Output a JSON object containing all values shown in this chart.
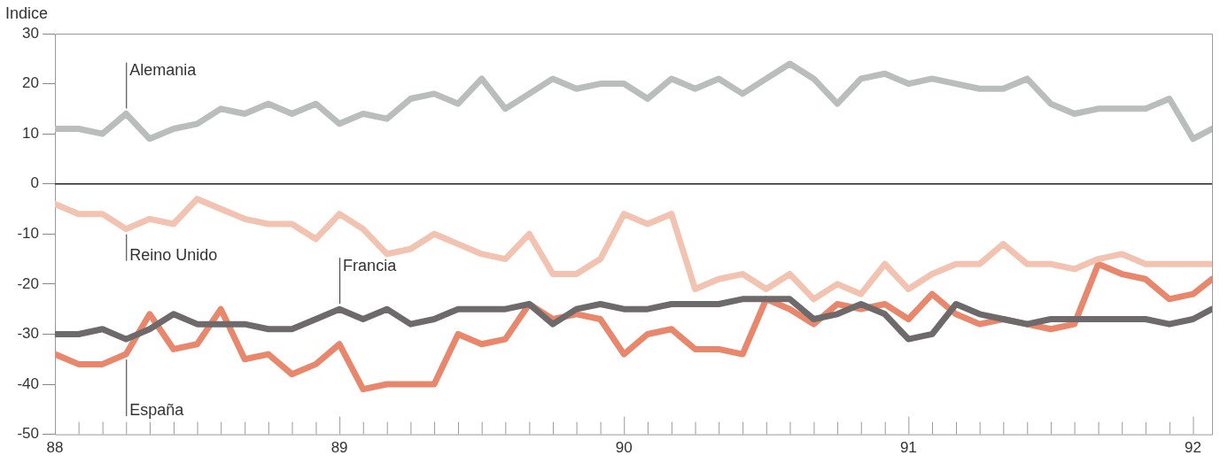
{
  "chart_data": {
    "type": "line",
    "ylabel": "Indice",
    "x": [
      88,
      88.083,
      88.167,
      88.25,
      88.333,
      88.417,
      88.5,
      88.583,
      88.667,
      88.75,
      88.833,
      88.917,
      89,
      89.083,
      89.167,
      89.25,
      89.333,
      89.417,
      89.5,
      89.583,
      89.667,
      89.75,
      89.833,
      89.917,
      90,
      90.083,
      90.167,
      90.25,
      90.333,
      90.417,
      90.5,
      90.583,
      90.667,
      90.75,
      90.833,
      90.917,
      91,
      91.083,
      91.167,
      91.25,
      91.333,
      91.417,
      91.5,
      91.583,
      91.667,
      91.75,
      91.833,
      91.917,
      92,
      92.067
    ],
    "series": [
      {
        "name": "Alemania",
        "color": "#b9bebc",
        "values": [
          11,
          11,
          10,
          14,
          9,
          11,
          12,
          15,
          14,
          16,
          14,
          16,
          12,
          14,
          13,
          17,
          18,
          16,
          21,
          15,
          18,
          21,
          19,
          20,
          20,
          17,
          21,
          19,
          21,
          18,
          21,
          24,
          21,
          16,
          21,
          22,
          20,
          21,
          20,
          19,
          19,
          21,
          16,
          14,
          15,
          15,
          15,
          17,
          9,
          11
        ]
      },
      {
        "name": "Reino Unido",
        "color": "#f2c3b1",
        "values": [
          -4,
          -6,
          -6,
          -9,
          -7,
          -8,
          -3,
          -5,
          -7,
          -8,
          -8,
          -11,
          -6,
          -9,
          -14,
          -13,
          -10,
          -12,
          -14,
          -15,
          -10,
          -18,
          -18,
          -15,
          -6,
          -8,
          -6,
          -21,
          -19,
          -18,
          -21,
          -18,
          -23,
          -20,
          -22,
          -16,
          -21,
          -18,
          -16,
          -16,
          -12,
          -16,
          -16,
          -17,
          -15,
          -14,
          -16,
          -16,
          -16,
          -16
        ]
      },
      {
        "name": "Francia",
        "color": "#6e6a6b",
        "values": [
          -30,
          -30,
          -29,
          -31,
          -29,
          -26,
          -28,
          -28,
          -28,
          -29,
          -29,
          -27,
          -25,
          -27,
          -25,
          -28,
          -27,
          -25,
          -25,
          -25,
          -24,
          -28,
          -25,
          -24,
          -25,
          -25,
          -24,
          -24,
          -24,
          -23,
          -23,
          -23,
          -27,
          -26,
          -24,
          -26,
          -31,
          -30,
          -24,
          -26,
          -27,
          -28,
          -27,
          -27,
          -27,
          -27,
          -27,
          -28,
          -27,
          -25
        ]
      },
      {
        "name": "España",
        "color": "#e8876c",
        "values": [
          -34,
          -36,
          -36,
          -34,
          -26,
          -33,
          -32,
          -25,
          -35,
          -34,
          -38,
          -36,
          -32,
          -41,
          -40,
          -40,
          -40,
          -30,
          -32,
          -31,
          -24,
          -27,
          -26,
          -27,
          -34,
          -30,
          -29,
          -33,
          -33,
          -34,
          -23,
          -25,
          -28,
          -24,
          -25,
          -24,
          -27,
          -22,
          -26,
          -28,
          -27,
          -28,
          -29,
          -28,
          -16,
          -18,
          -19,
          -23,
          -22,
          -19
        ]
      }
    ],
    "xlim": [
      88,
      92.067
    ],
    "xticks": [
      88,
      {
        "value": 88.083,
        "label": null
      },
      {
        "value": 88.167,
        "label": null
      },
      {
        "value": 88.25,
        "label": null
      },
      {
        "value": 88.333,
        "label": null
      },
      {
        "value": 88.417,
        "label": null
      },
      {
        "value": 88.5,
        "label": null
      },
      {
        "value": 88.583,
        "label": null
      },
      {
        "value": 88.667,
        "label": null
      },
      {
        "value": 88.75,
        "label": null
      },
      {
        "value": 88.833,
        "label": null
      },
      {
        "value": 88.917,
        "label": null
      },
      89,
      {
        "value": 89.083,
        "label": null
      },
      {
        "value": 89.167,
        "label": null
      },
      {
        "value": 89.25,
        "label": null
      },
      {
        "value": 89.333,
        "label": null
      },
      {
        "value": 89.417,
        "label": null
      },
      {
        "value": 89.5,
        "label": null
      },
      {
        "value": 89.583,
        "label": null
      },
      {
        "value": 89.667,
        "label": null
      },
      {
        "value": 89.75,
        "label": null
      },
      {
        "value": 89.833,
        "label": null
      },
      {
        "value": 89.917,
        "label": null
      },
      90,
      {
        "value": 90.083,
        "label": null
      },
      {
        "value": 90.167,
        "label": null
      },
      {
        "value": 90.25,
        "label": null
      },
      {
        "value": 90.333,
        "label": null
      },
      {
        "value": 90.417,
        "label": null
      },
      {
        "value": 90.5,
        "label": null
      },
      {
        "value": 90.583,
        "label": null
      },
      {
        "value": 90.667,
        "label": null
      },
      {
        "value": 90.75,
        "label": null
      },
      {
        "value": 90.833,
        "label": null
      },
      {
        "value": 90.917,
        "label": null
      },
      91,
      {
        "value": 91.083,
        "label": null
      },
      {
        "value": 91.167,
        "label": null
      },
      {
        "value": 91.25,
        "label": null
      },
      {
        "value": 91.333,
        "label": null
      },
      {
        "value": 91.417,
        "label": null
      },
      {
        "value": 91.5,
        "label": null
      },
      {
        "value": 91.583,
        "label": null
      },
      {
        "value": 91.667,
        "label": null
      },
      {
        "value": 91.75,
        "label": null
      },
      {
        "value": 91.833,
        "label": null
      },
      {
        "value": 91.917,
        "label": null
      },
      92
    ],
    "ylim": [
      -50,
      30
    ],
    "yticks": [
      -50,
      -40,
      -30,
      -20,
      -10,
      0,
      10,
      20,
      30
    ],
    "ref_lines": [
      {
        "axis": "y",
        "value": 0,
        "color": "#222222"
      }
    ],
    "grid": false,
    "legend": false,
    "marker": "none",
    "line_style": "solid"
  }
}
